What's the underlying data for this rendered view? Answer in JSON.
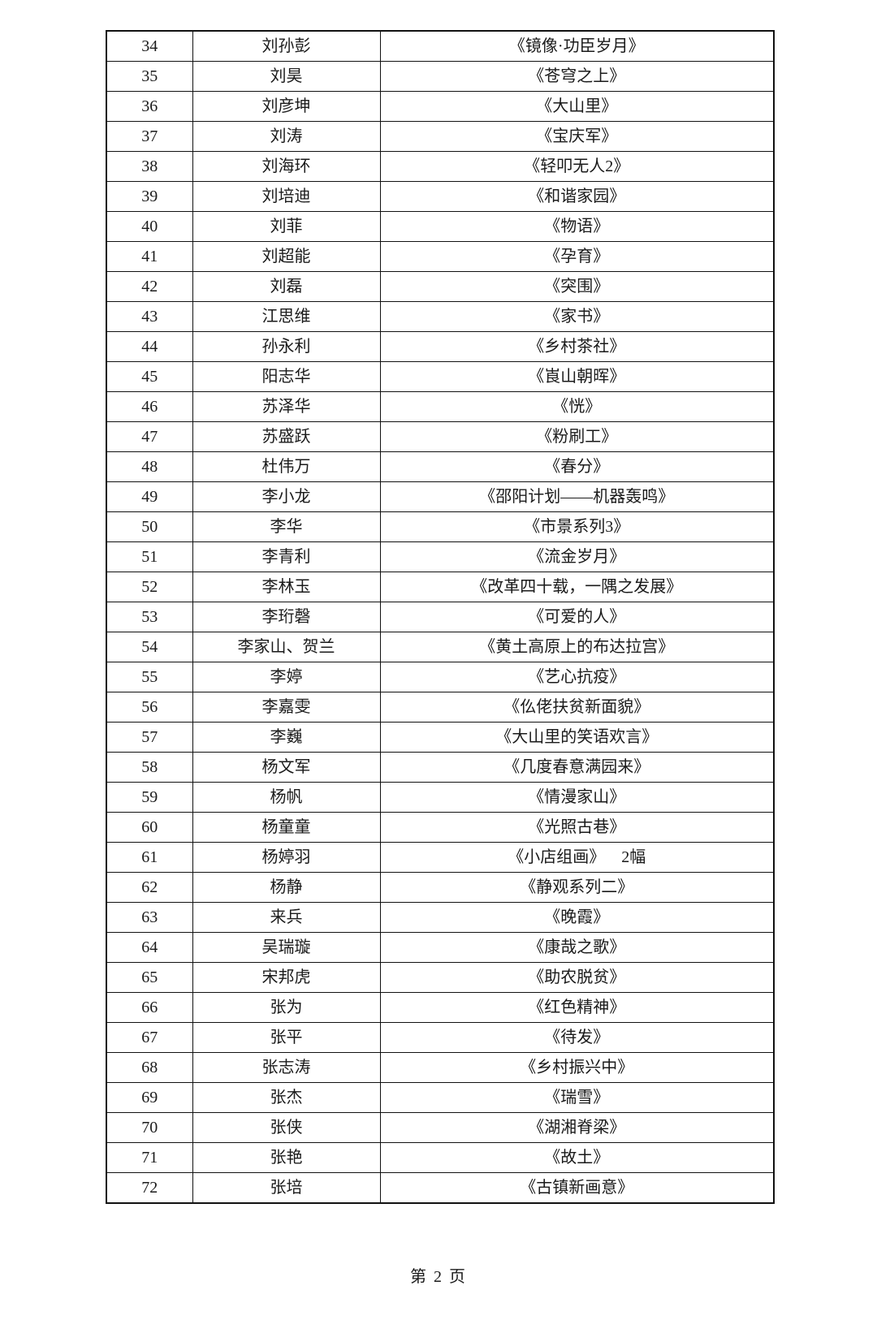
{
  "rows": [
    {
      "no": "34",
      "name": "刘孙彭",
      "work": "《镜像·功臣岁月》"
    },
    {
      "no": "35",
      "name": "刘昊",
      "work": "《苍穹之上》"
    },
    {
      "no": "36",
      "name": "刘彦坤",
      "work": "《大山里》"
    },
    {
      "no": "37",
      "name": "刘涛",
      "work": "《宝庆军》"
    },
    {
      "no": "38",
      "name": "刘海环",
      "work": "《轻叩无人2》"
    },
    {
      "no": "39",
      "name": "刘培迪",
      "work": "《和谐家园》"
    },
    {
      "no": "40",
      "name": "刘菲",
      "work": "《物语》"
    },
    {
      "no": "41",
      "name": "刘超能",
      "work": "《孕育》"
    },
    {
      "no": "42",
      "name": "刘磊",
      "work": "《突围》"
    },
    {
      "no": "43",
      "name": "江思维",
      "work": "《家书》"
    },
    {
      "no": "44",
      "name": "孙永利",
      "work": "《乡村茶社》"
    },
    {
      "no": "45",
      "name": "阳志华",
      "work": "《崀山朝晖》"
    },
    {
      "no": "46",
      "name": "苏泽华",
      "work": "《恍》"
    },
    {
      "no": "47",
      "name": "苏盛跃",
      "work": "《粉刷工》"
    },
    {
      "no": "48",
      "name": "杜伟万",
      "work": "《春分》"
    },
    {
      "no": "49",
      "name": "李小龙",
      "work": "《邵阳计划——机器轰鸣》"
    },
    {
      "no": "50",
      "name": "李华",
      "work": "《市景系列3》"
    },
    {
      "no": "51",
      "name": "李青利",
      "work": "《流金岁月》"
    },
    {
      "no": "52",
      "name": "李林玉",
      "work": "《改革四十载，一隅之发展》"
    },
    {
      "no": "53",
      "name": "李珩磬",
      "work": "《可爱的人》"
    },
    {
      "no": "54",
      "name": "李家山、贺兰",
      "work": "《黄土高原上的布达拉宫》"
    },
    {
      "no": "55",
      "name": "李婷",
      "work": "《艺心抗疫》"
    },
    {
      "no": "56",
      "name": "李嘉雯",
      "work": "《仫佬扶贫新面貌》"
    },
    {
      "no": "57",
      "name": "李巍",
      "work": "《大山里的笑语欢言》"
    },
    {
      "no": "58",
      "name": "杨文军",
      "work": "《几度春意满园来》"
    },
    {
      "no": "59",
      "name": "杨帆",
      "work": "《情漫家山》"
    },
    {
      "no": "60",
      "name": "杨童童",
      "work": "《光照古巷》"
    },
    {
      "no": "61",
      "name": "杨婷羽",
      "work": "《小店组画》    2幅"
    },
    {
      "no": "62",
      "name": "杨静",
      "work": "《静观系列二》"
    },
    {
      "no": "63",
      "name": "来兵",
      "work": "《晚霞》"
    },
    {
      "no": "64",
      "name": "吴瑞璇",
      "work": "《康哉之歌》"
    },
    {
      "no": "65",
      "name": "宋邦虎",
      "work": "《助农脱贫》"
    },
    {
      "no": "66",
      "name": "张为",
      "work": "《红色精神》"
    },
    {
      "no": "67",
      "name": "张平",
      "work": "《待发》"
    },
    {
      "no": "68",
      "name": "张志涛",
      "work": "《乡村振兴中》"
    },
    {
      "no": "69",
      "name": "张杰",
      "work": "《瑞雪》"
    },
    {
      "no": "70",
      "name": "张侠",
      "work": "《湖湘脊梁》"
    },
    {
      "no": "71",
      "name": "张艳",
      "work": "《故土》"
    },
    {
      "no": "72",
      "name": "张培",
      "work": "《古镇新画意》"
    }
  ],
  "footer": {
    "page_label": "第 2 页"
  }
}
